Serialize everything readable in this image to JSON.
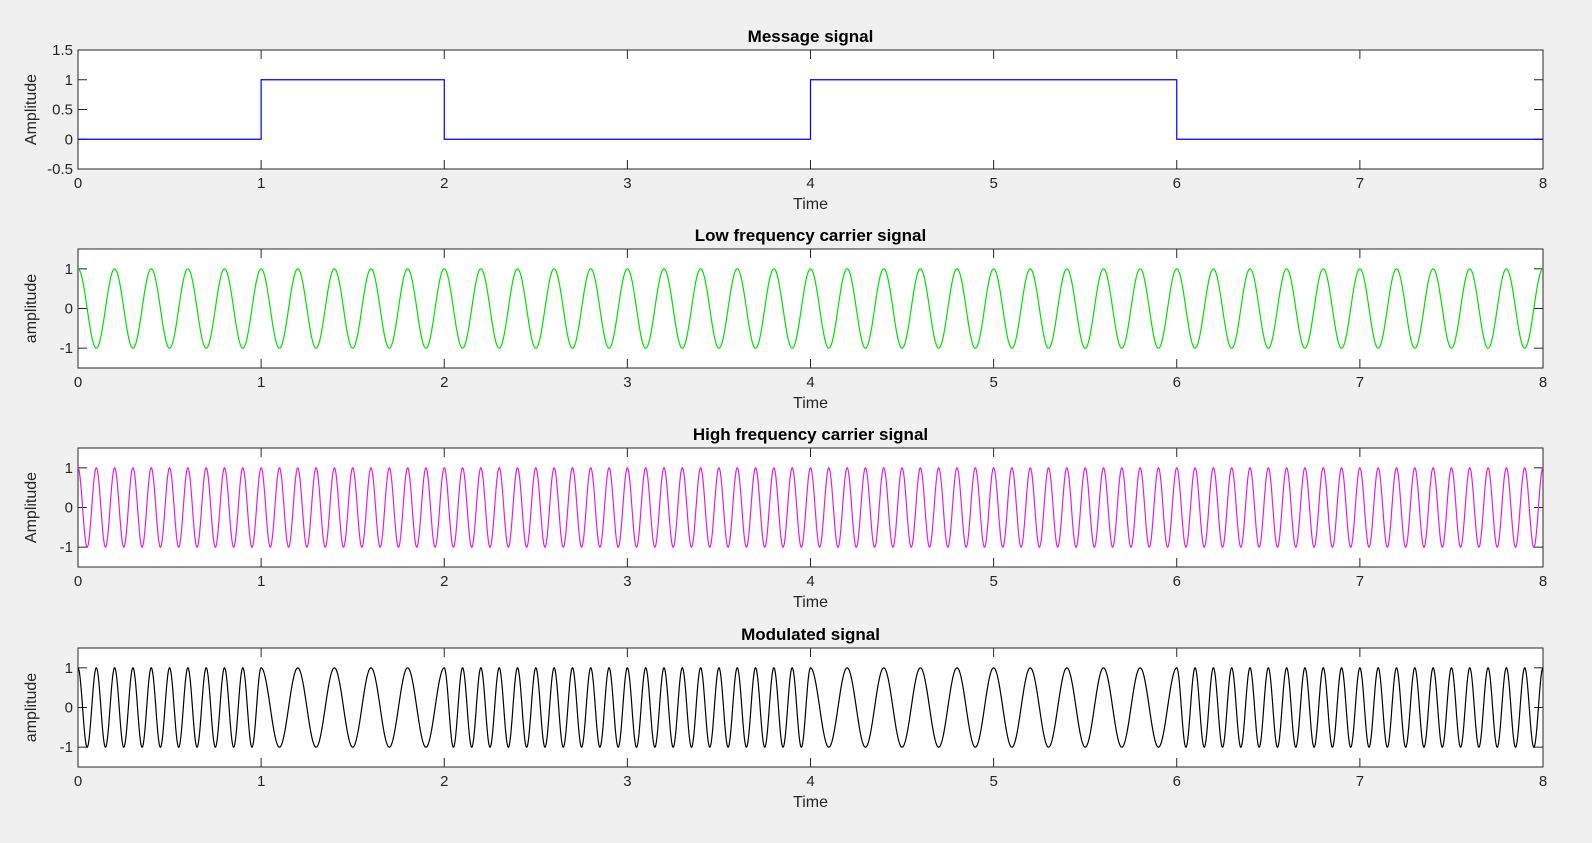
{
  "chart_data": [
    {
      "type": "line",
      "title": "Message signal",
      "xlabel": "Time",
      "ylabel": "Amplitude",
      "xlim": [
        0,
        8
      ],
      "ylim": [
        -0.5,
        1.5
      ],
      "xticks": [
        "0",
        "1",
        "2",
        "3",
        "4",
        "5",
        "6",
        "7",
        "8"
      ],
      "yticks": [
        "-0.5",
        "0",
        "0.5",
        "1",
        "1.5"
      ],
      "grid": false,
      "color": "#0000ff",
      "series": [
        {
          "x": [
            0,
            1,
            1,
            2,
            2,
            4,
            4,
            6,
            6,
            8
          ],
          "y": [
            0,
            0,
            1,
            1,
            0,
            0,
            1,
            1,
            0,
            0
          ]
        }
      ]
    },
    {
      "type": "line",
      "title": "Low frequency carrier signal",
      "xlabel": "Time",
      "ylabel": "amplitude",
      "xlim": [
        0,
        8
      ],
      "ylim": [
        -1.5,
        1.5
      ],
      "xticks": [
        "0",
        "1",
        "2",
        "3",
        "4",
        "5",
        "6",
        "7",
        "8"
      ],
      "yticks": [
        "-1",
        "0",
        "1"
      ],
      "grid": false,
      "color": "#00e000",
      "series": [
        {
          "function": "cosine",
          "amplitude": 1,
          "frequency_hz": 5
        }
      ]
    },
    {
      "type": "line",
      "title": "High frequency carrier signal",
      "xlabel": "Time",
      "ylabel": "Amplitude",
      "xlim": [
        0,
        8
      ],
      "ylim": [
        -1.5,
        1.5
      ],
      "xticks": [
        "0",
        "1",
        "2",
        "3",
        "4",
        "5",
        "6",
        "7",
        "8"
      ],
      "yticks": [
        "-1",
        "0",
        "1"
      ],
      "grid": false,
      "color": "#e020e0",
      "series": [
        {
          "function": "cosine",
          "amplitude": 1,
          "frequency_hz": 10
        }
      ]
    },
    {
      "type": "line",
      "title": "Modulated signal",
      "xlabel": "Time",
      "ylabel": "amplitude",
      "xlim": [
        0,
        8
      ],
      "ylim": [
        -1.5,
        1.5
      ],
      "xticks": [
        "0",
        "1",
        "2",
        "3",
        "4",
        "5",
        "6",
        "7",
        "8"
      ],
      "yticks": [
        "-1",
        "0",
        "1"
      ],
      "grid": false,
      "color": "#000000",
      "series": [
        {
          "function": "fsk",
          "amplitude": 1,
          "frequency_when_message_0_hz": 10,
          "frequency_when_message_1_hz": 5
        }
      ]
    }
  ]
}
